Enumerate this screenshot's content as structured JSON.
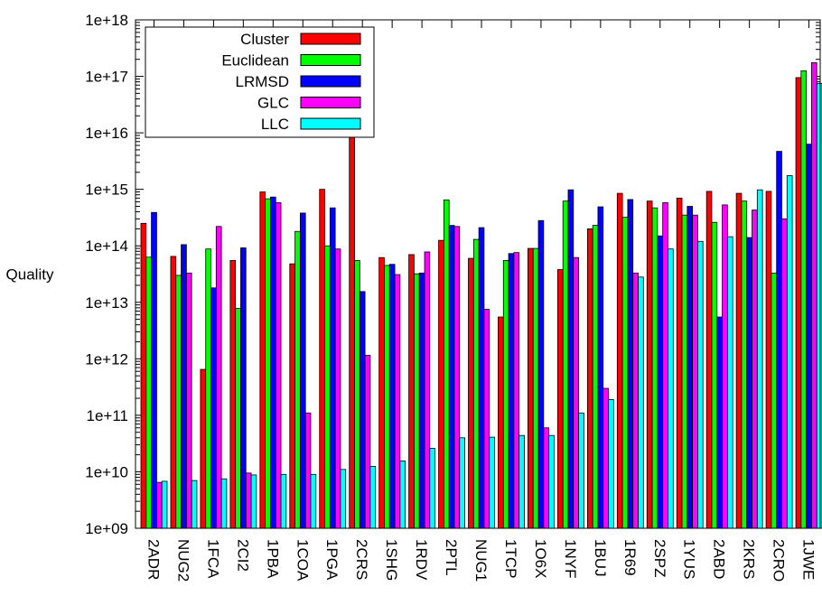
{
  "chart_data": {
    "type": "bar",
    "title": "",
    "xlabel": "",
    "ylabel": "Quality",
    "yscale": "log",
    "ylim": [
      1000000000.0,
      1e+18
    ],
    "yticks": [
      "1e+09",
      "1e+10",
      "1e+11",
      "1e+12",
      "1e+13",
      "1e+14",
      "1e+15",
      "1e+16",
      "1e+17",
      "1e+18"
    ],
    "legend_position": "top-left",
    "categories": [
      "2ADR",
      "NUG2",
      "1FCA",
      "2CI2",
      "1PBA",
      "1COA",
      "1PGA",
      "2CRS",
      "1SHG",
      "1RDV",
      "2PTL",
      "NUG1",
      "1TCP",
      "1O6X",
      "1NYF",
      "1BUJ",
      "1R69",
      "2SPZ",
      "1YUS",
      "2ABD",
      "2KRS",
      "2CRO",
      "1JWE"
    ],
    "series": [
      {
        "name": "Cluster",
        "color": "#ff0000",
        "values": [
          250000000000000.0,
          65000000000000.0,
          650000000000.0,
          55000000000000.0,
          900000000000000.0,
          48000000000000.0,
          1000000000000000.0,
          1e+17,
          62000000000000.0,
          70000000000000.0,
          125000000000000.0,
          60000000000000.0,
          5500000000000.0,
          90000000000000.0,
          38000000000000.0,
          200000000000000.0,
          850000000000000.0,
          620000000000000.0,
          700000000000000.0,
          920000000000000.0,
          850000000000000.0,
          920000000000000.0,
          9.5e+16
        ]
      },
      {
        "name": "Euclidean",
        "color": "#00ff00",
        "values": [
          63000000000000.0,
          30000000000000.0,
          88000000000000.0,
          7800000000000.0,
          680000000000000.0,
          180000000000000.0,
          100000000000000.0,
          55000000000000.0,
          45000000000000.0,
          32000000000000.0,
          650000000000000.0,
          130000000000000.0,
          55000000000000.0,
          90000000000000.0,
          620000000000000.0,
          230000000000000.0,
          320000000000000.0,
          470000000000000.0,
          350000000000000.0,
          260000000000000.0,
          620000000000000.0,
          33000000000000.0,
          1.25e+17
        ]
      },
      {
        "name": "LRMSD",
        "color": "#0000ff",
        "values": [
          390000000000000.0,
          105000000000000.0,
          18000000000000.0,
          92000000000000.0,
          730000000000000.0,
          380000000000000.0,
          470000000000000.0,
          15500000000000.0,
          47000000000000.0,
          33000000000000.0,
          230000000000000.0,
          210000000000000.0,
          73000000000000.0,
          280000000000000.0,
          980000000000000.0,
          490000000000000.0,
          660000000000000.0,
          150000000000000.0,
          500000000000000.0,
          5500000000000.0,
          140000000000000.0,
          4700000000000000.0,
          6300000000000000.0
        ]
      },
      {
        "name": "GLC",
        "color": "#ff00ff",
        "values": [
          6500000000.0,
          33000000000000.0,
          220000000000000.0,
          9500000000.0,
          580000000000000.0,
          110000000000.0,
          88000000000000.0,
          1150000000000.0,
          31000000000000.0,
          78000000000000.0,
          220000000000000.0,
          7500000000000.0,
          76000000000000.0,
          60000000000.0,
          62000000000000.0,
          300000000000.0,
          33000000000000.0,
          580000000000000.0,
          350000000000000.0,
          530000000000000.0,
          430000000000000.0,
          300000000000000.0,
          1.75e+17
        ]
      },
      {
        "name": "LLC",
        "color": "#00ffff",
        "values": [
          6800000000.0,
          7000000000.0,
          7500000000.0,
          8800000000.0,
          9000000000.0,
          9000000000.0,
          11000000000.0,
          12500000000.0,
          15500000000.0,
          26000000000.0,
          40000000000.0,
          41000000000.0,
          44000000000.0,
          44000000000.0,
          110000000000.0,
          190000000000.0,
          28000000000000.0,
          88000000000000.0,
          120000000000000.0,
          145000000000000.0,
          980000000000000.0,
          1750000000000000.0,
          7.5e+16
        ]
      }
    ]
  }
}
